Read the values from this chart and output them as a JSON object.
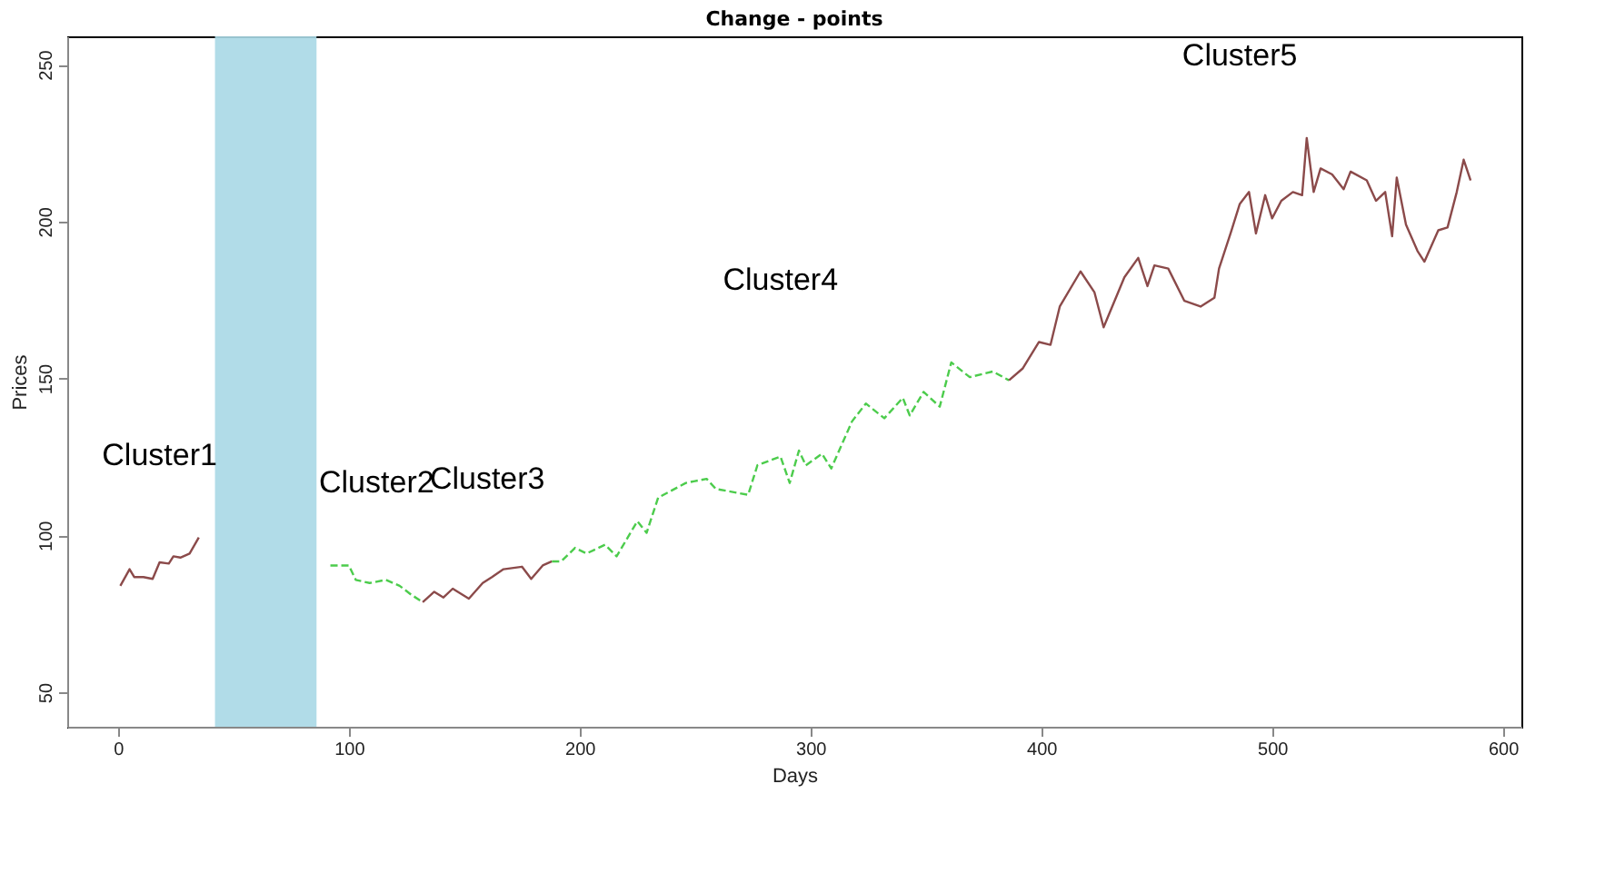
{
  "chart_data": {
    "type": "line",
    "title": "Change - points",
    "xlabel": "Days",
    "ylabel": "Prices",
    "xlim": [
      -22,
      608
    ],
    "xticks": [
      0,
      100,
      200,
      300,
      400,
      500,
      600
    ],
    "ylim": [
      39,
      259
    ],
    "yticks": [
      50,
      100,
      150,
      200,
      250
    ],
    "grid": false,
    "series": [
      {
        "color": "#8b4a4a",
        "line_style": "solid",
        "x": [
          1,
          5,
          7,
          11,
          15,
          18,
          22,
          24,
          27,
          31,
          35
        ],
        "values": [
          83.9,
          89.2,
          86.7,
          86.7,
          86.1,
          91.4,
          91,
          93.3,
          92.9,
          94.2,
          99.3
        ]
      },
      {
        "color": "#4ccc4c",
        "line_style": "dashed",
        "x": [
          92,
          100,
          103,
          109,
          116,
          122,
          127,
          132
        ],
        "values": [
          90.4,
          90.4,
          85.8,
          84.8,
          85.8,
          83.9,
          81.1,
          78.7
        ]
      },
      {
        "color": "#8b4a4a",
        "line_style": "solid",
        "x": [
          132,
          137,
          141,
          145,
          152,
          158,
          162,
          167,
          175,
          179,
          184,
          188
        ],
        "values": [
          78.7,
          82,
          80.2,
          83,
          79.8,
          84.8,
          86.7,
          89.2,
          90,
          86.1,
          90.4,
          91.7
        ]
      },
      {
        "color": "#4ccc4c",
        "line_style": "dashed",
        "x": [
          188,
          192,
          198,
          203,
          211,
          216,
          225,
          229,
          234,
          246,
          255,
          259,
          273,
          277,
          287,
          291,
          295,
          298,
          305,
          309,
          318,
          324,
          332,
          340,
          343,
          349,
          356,
          361,
          369,
          379,
          386
        ],
        "values": [
          91.7,
          91.7,
          96,
          94.2,
          97,
          93.3,
          104.5,
          100.8,
          112,
          116.7,
          118,
          114.8,
          112.9,
          122.3,
          125.1,
          116.7,
          127,
          122.3,
          126,
          121.3,
          136.3,
          142,
          137.3,
          143.8,
          138.2,
          145.7,
          141,
          155.1,
          150.4,
          152.2,
          149.4
        ]
      },
      {
        "color": "#8b4a4a",
        "line_style": "solid",
        "x": [
          386,
          392,
          399,
          404,
          408,
          417,
          423,
          427,
          436,
          442,
          446,
          449,
          455,
          462,
          469,
          475,
          477,
          482,
          486,
          490,
          493,
          497,
          500,
          504,
          509,
          513,
          515,
          518,
          521,
          526,
          531,
          534,
          541,
          545,
          549,
          552,
          554,
          558,
          563,
          566,
          572,
          576,
          580,
          583,
          586
        ],
        "values": [
          149.4,
          153.2,
          161.6,
          160.7,
          172.9,
          184.1,
          177.5,
          166.3,
          182.2,
          188.4,
          179.4,
          186,
          185,
          174.7,
          172.9,
          175.7,
          185,
          196.2,
          205.6,
          209.4,
          196.2,
          208.4,
          201,
          206.6,
          209.4,
          208.4,
          226.6,
          209.4,
          216.9,
          215,
          210.3,
          215.9,
          213.1,
          206.6,
          209.4,
          195.3,
          214,
          199,
          190.6,
          187.2,
          197.2,
          198.1,
          209.4,
          219.7,
          213.1
        ]
      }
    ],
    "bands": [
      {
        "axis": "x",
        "from": 42,
        "to": 86,
        "color": "#a8d8e6"
      }
    ],
    "annotations": [
      "Cluster1",
      "Cluster2",
      "Cluster3",
      "Cluster4",
      "Cluster5"
    ]
  }
}
